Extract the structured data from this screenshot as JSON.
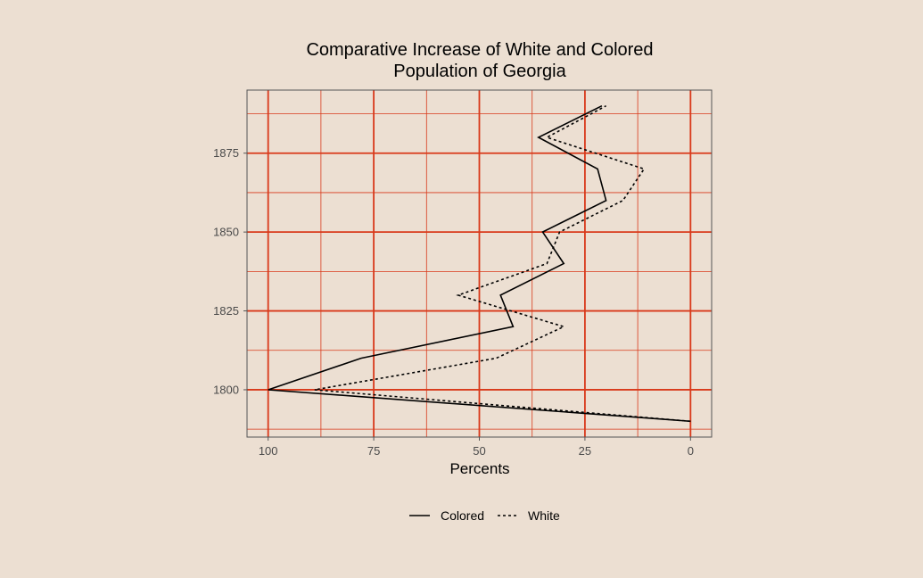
{
  "colors": {
    "background": "#ecdfd2",
    "grid_major": "#d9391a",
    "grid_minor": "#d9391a",
    "series": "#000000"
  },
  "chart_data": {
    "type": "line",
    "orientation": "vertical-time",
    "title_lines": [
      "Comparative Increase of White and Colored",
      "Population of Georgia"
    ],
    "xlabel": "Percents",
    "ylabel": "",
    "x_reversed": true,
    "xlim": [
      -5,
      105
    ],
    "ylim": [
      1785,
      1895
    ],
    "x_ticks": [
      100,
      75,
      50,
      25,
      0
    ],
    "x_tick_labels": [
      "100",
      "75",
      "50",
      "25",
      "0"
    ],
    "y_ticks": [
      1800,
      1825,
      1850,
      1875
    ],
    "y_tick_labels": [
      "1800",
      "1825",
      "1850",
      "1875"
    ],
    "grid": true,
    "legend_position": "bottom",
    "series": [
      {
        "name": "Colored",
        "dash": "solid",
        "points": [
          {
            "year": 1790,
            "pct": 0
          },
          {
            "year": 1800,
            "pct": 100
          },
          {
            "year": 1810,
            "pct": 78
          },
          {
            "year": 1820,
            "pct": 42
          },
          {
            "year": 1830,
            "pct": 45
          },
          {
            "year": 1840,
            "pct": 30
          },
          {
            "year": 1850,
            "pct": 35
          },
          {
            "year": 1860,
            "pct": 20
          },
          {
            "year": 1870,
            "pct": 22
          },
          {
            "year": 1880,
            "pct": 36
          },
          {
            "year": 1890,
            "pct": 21
          }
        ]
      },
      {
        "name": "White",
        "dash": "dashed",
        "points": [
          {
            "year": 1790,
            "pct": 0
          },
          {
            "year": 1800,
            "pct": 89
          },
          {
            "year": 1810,
            "pct": 46
          },
          {
            "year": 1820,
            "pct": 30
          },
          {
            "year": 1830,
            "pct": 55
          },
          {
            "year": 1840,
            "pct": 34
          },
          {
            "year": 1850,
            "pct": 31
          },
          {
            "year": 1860,
            "pct": 16
          },
          {
            "year": 1870,
            "pct": 11
          },
          {
            "year": 1880,
            "pct": 34
          },
          {
            "year": 1890,
            "pct": 20
          }
        ]
      }
    ]
  }
}
